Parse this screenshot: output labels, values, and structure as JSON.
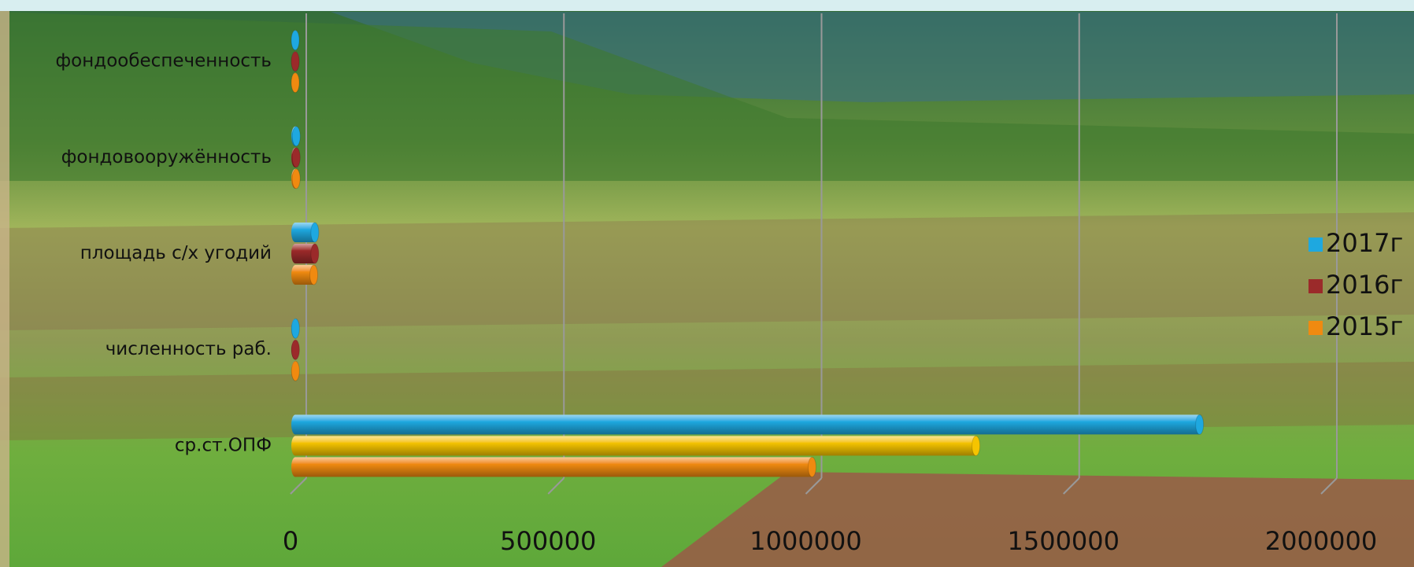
{
  "chart_data": {
    "type": "bar",
    "orientation": "horizontal",
    "style": "3d-cylinder",
    "categories": [
      "ср.ст.ОПФ",
      "численность раб.",
      "площадь с/х угодий",
      "фондовооружённость",
      "фондообеспеченность"
    ],
    "series": [
      {
        "name": "2017г",
        "color": "#1ea8e0",
        "values": [
          1755000,
          500,
          38000,
          2000,
          40
        ]
      },
      {
        "name": "2016г",
        "color": "#9b2a2a",
        "colors": [
          "#f5c400",
          "#9b2a2a",
          "#9b2a2a",
          "#9b2a2a",
          "#9b2a2a"
        ],
        "values": [
          1321000,
          480,
          38000,
          1900,
          38
        ]
      },
      {
        "name": "2015г",
        "color": "#f08a10",
        "values": [
          1003000,
          470,
          36000,
          1800,
          36
        ]
      }
    ],
    "xlim": [
      0,
      2000000
    ],
    "xticks": [
      0,
      500000,
      1000000,
      1500000,
      2000000
    ],
    "grid": true,
    "legend": "right"
  }
}
